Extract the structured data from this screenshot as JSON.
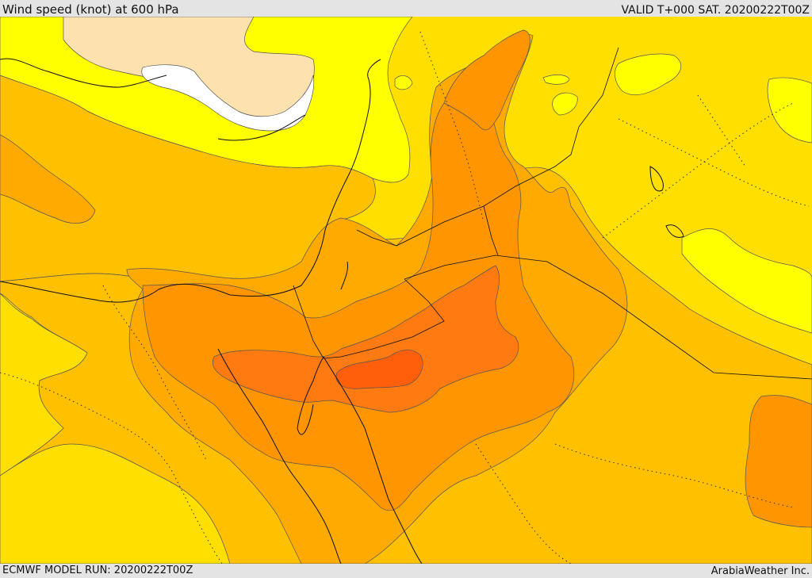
{
  "header": {
    "title": "Wind speed (knot) at 600 hPa",
    "valid": "VALID T+000 SAT. 20200222T00Z"
  },
  "footer": {
    "model_run": "ECMWF MODEL RUN: 20200222T00Z",
    "credit": "ArabiaWeather Inc."
  },
  "map": {
    "field": "wind speed",
    "level_hpa": 600,
    "unit": "knot",
    "region": "Eastern Mediterranean / Middle East",
    "palette": {
      "calm_white": "#ffffff",
      "low_tan": "#fde2b0",
      "pale_yellow": "#ffff00",
      "yellow": "#ffdf00",
      "gold": "#ffc000",
      "amber": "#ffaa00",
      "orange": "#ff9500",
      "dark_orange": "#ff7a10",
      "red_orange": "#ff5e0a"
    },
    "features": [
      "wind-speed contours",
      "coastlines",
      "national borders",
      "dotted isolines"
    ]
  }
}
